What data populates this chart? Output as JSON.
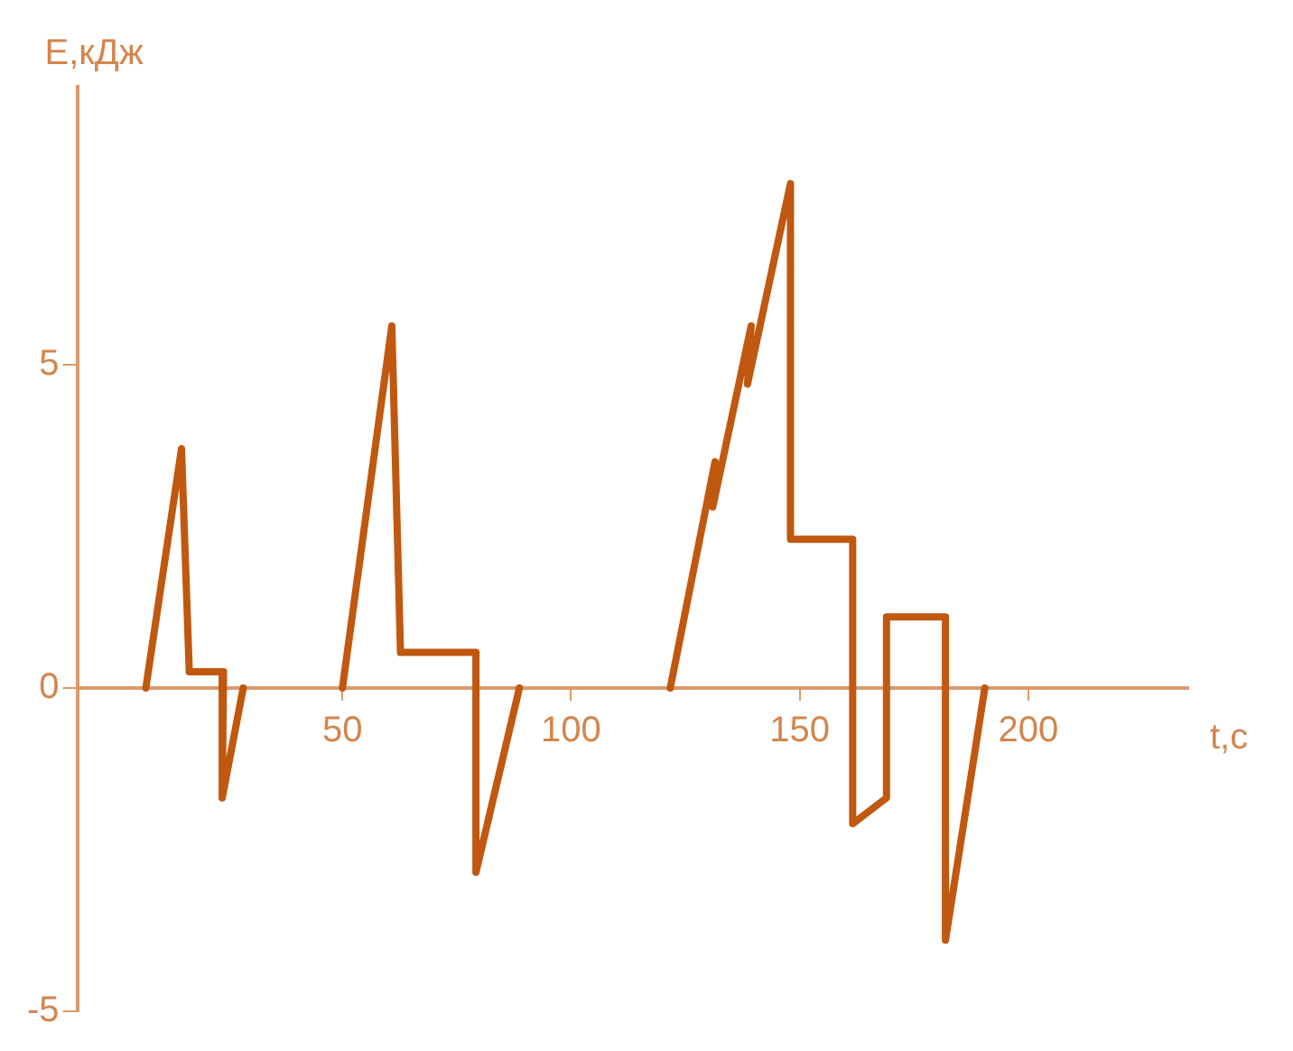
{
  "chart_data": {
    "type": "line",
    "xlabel": "t,c",
    "ylabel": "E,кДж",
    "xlim": [
      -8,
      235
    ],
    "ylim": [
      -5,
      9.3
    ],
    "xticks": [
      50,
      100,
      150,
      200
    ],
    "yticks": [
      -5,
      0,
      5
    ],
    "series": [
      {
        "color": "#c0580f",
        "x": [
          7,
          14.8,
          16.5,
          24,
          23.7,
          28.3
        ],
        "values": [
          0,
          3.7,
          0.25,
          0.25,
          -1.7,
          0
        ]
      },
      {
        "color": "#c0580f",
        "x": [
          50,
          60.8,
          62.7,
          79.2,
          79.2,
          88.7
        ],
        "values": [
          0,
          5.6,
          0.55,
          0.55,
          -2.85,
          0
        ]
      },
      {
        "color": "#c0580f",
        "x": [
          121.7,
          131.5,
          131,
          139.4,
          138.6,
          148,
          148,
          161.6,
          161.6,
          169,
          169,
          181.9,
          181.9,
          190.5
        ],
        "values": [
          0,
          3.5,
          2.8,
          5.6,
          4.7,
          7.8,
          2.3,
          2.3,
          -2.1,
          -1.7,
          1.1,
          1.1,
          -3.9,
          0
        ]
      }
    ],
    "marker": "none",
    "line_style": "solid"
  }
}
